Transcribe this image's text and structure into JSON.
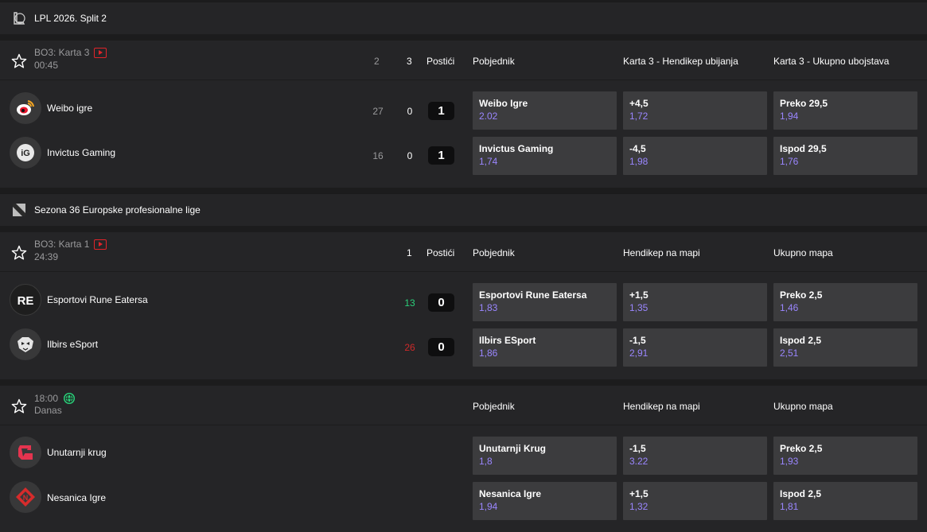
{
  "leagues": [
    {
      "name": "LPL 2026. Split 2",
      "icon": "lol-icon",
      "match": {
        "info_line1": "BO3: Karta 3",
        "info_line2": "00:45",
        "status_icon": "live-stream-icon",
        "header_stats": [
          "2",
          "3"
        ],
        "header_score_label": "Postići",
        "markets": [
          "Pobjednik",
          "Karta 3 - Hendikep ubijanja",
          "Karta 3 - Ukupno ubojstava"
        ],
        "teams": [
          {
            "name": "Weibo igre",
            "logo": "weibo-logo",
            "stats": [
              "27",
              "0"
            ],
            "score": "1",
            "odds": [
              {
                "label": "Weibo Igre",
                "value": "2.02"
              },
              {
                "label": "+4,5",
                "value": "1,72"
              },
              {
                "label": "Preko 29,5",
                "value": "1,94"
              }
            ]
          },
          {
            "name": "Invictus Gaming",
            "logo": "invictus-logo",
            "stats": [
              "16",
              "0"
            ],
            "score": "1",
            "odds": [
              {
                "label": "Invictus Gaming",
                "value": "1,74"
              },
              {
                "label": "-4,5",
                "value": "1,98"
              },
              {
                "label": "Ispod 29,5",
                "value": "1,76"
              }
            ]
          }
        ]
      }
    },
    {
      "name": "Sezona 36 Europske profesionalne lige",
      "icon": "dota-icon",
      "matches": [
        {
          "info_line1": "BO3: Karta 1",
          "info_line2": "24:39",
          "status_icon": "live-stream-icon",
          "header_stats": [
            "1"
          ],
          "header_score_label": "Postići",
          "markets": [
            "Pobjednik",
            "Hendikep na mapi",
            "Ukupno mapa"
          ],
          "teams": [
            {
              "name": "Esportovi Rune Eatersa",
              "logo": "rune-eaters-logo",
              "stats": [
                "13"
              ],
              "score": "0",
              "odds": [
                {
                  "label": "Esportovi Rune Eatersa",
                  "value": "1,83"
                },
                {
                  "label": "+1,5",
                  "value": "1,35"
                },
                {
                  "label": "Preko 2,5",
                  "value": "1,46"
                }
              ]
            },
            {
              "name": "Ilbirs eSport",
              "logo": "ilbirs-logo",
              "stats": [
                "26"
              ],
              "score": "0",
              "odds": [
                {
                  "label": "Ilbirs ESport",
                  "value": "1,86"
                },
                {
                  "label": "-1,5",
                  "value": "2,91"
                },
                {
                  "label": "Ispod 2,5",
                  "value": "2,51"
                }
              ]
            }
          ]
        },
        {
          "info_line1": "18:00",
          "info_line2": "Danas",
          "status_icon": "globe-icon",
          "markets": [
            "Pobjednik",
            "Hendikep na mapi",
            "Ukupno mapa"
          ],
          "teams": [
            {
              "name": "Unutarnji krug",
              "logo": "inner-circle-logo",
              "odds": [
                {
                  "label": "Unutarnji Krug",
                  "value": "1,8"
                },
                {
                  "label": "-1,5",
                  "value": "3.22"
                },
                {
                  "label": "Preko 2,5",
                  "value": "1,93"
                }
              ]
            },
            {
              "name": "Nesanica Igre",
              "logo": "insomnia-logo",
              "odds": [
                {
                  "label": "Nesanica Igre",
                  "value": "1,94"
                },
                {
                  "label": "+1,5",
                  "value": "1,32"
                },
                {
                  "label": "Ispod 2,5",
                  "value": "1,81"
                }
              ]
            }
          ]
        }
      ]
    }
  ],
  "colors": {
    "background": "#1c1c1d",
    "panel": "#252527",
    "odds_button": "#3c3c3e",
    "odds_value": "#9a86ff",
    "live_red": "#e0242a",
    "score_green": "#2bd07a",
    "score_red": "#cf2a2a"
  }
}
